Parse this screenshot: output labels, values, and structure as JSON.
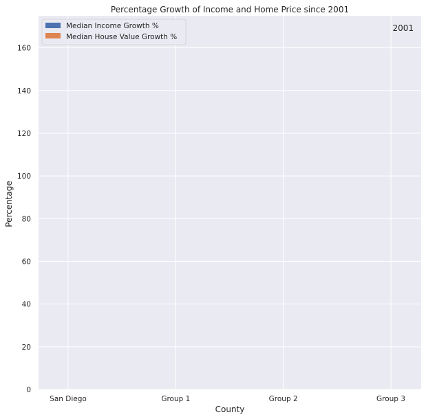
{
  "chart_data": {
    "type": "bar",
    "title": "Percentage Growth of Income and Home Price since 2001",
    "xlabel": "County",
    "ylabel": "Percentage",
    "categories": [
      "San Diego",
      "Group 1",
      "Group 2",
      "Group 3"
    ],
    "ylim": [
      0,
      175
    ],
    "yticks": [
      "0",
      "20",
      "40",
      "60",
      "80",
      "100",
      "120",
      "140",
      "160"
    ],
    "series": [
      {
        "name": "Median Income Growth %",
        "color": "#4c72b0",
        "values": [
          0,
          0,
          0,
          0
        ]
      },
      {
        "name": "Median House Value Growth %",
        "color": "#dd8452",
        "values": [
          0,
          0,
          0,
          0
        ]
      }
    ],
    "annotation": "2001",
    "grid": true,
    "legend_position": "upper-left",
    "background": "#eaeaf2"
  }
}
